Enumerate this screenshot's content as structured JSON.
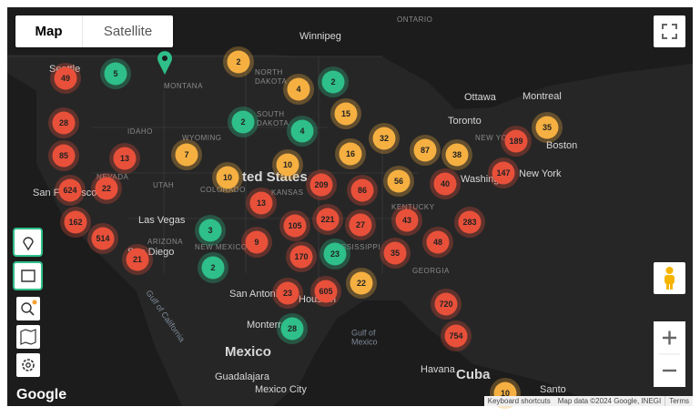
{
  "map_type_control": {
    "map": "Map",
    "satellite": "Satellite"
  },
  "places": [
    "ONTARIO",
    "Winnipeg",
    "MONTANA",
    "NORTH",
    "DAKOTA",
    "SOUTH",
    "DAKOTA",
    "WYOMING",
    "Seattle",
    "Ottawa",
    "Montreal",
    "Toronto",
    "Boston",
    "New York",
    "NEW YORK",
    "Washing",
    "ted States",
    "Las Vegas",
    "San Francisco",
    "UTAH",
    "COLORADO",
    "KANSAS",
    "NEVADA",
    "IDAHO",
    "NEW MEXICO",
    "ARIZONA",
    "San Diego",
    "San Antonio",
    "Houston",
    "Monterrey",
    "Mexico",
    "Gulf of",
    "Mexico",
    "Havana",
    "Cuba",
    "Guadalajara",
    "Mexico City",
    "Santo",
    "KENTUCKY",
    "GEORGIA",
    "MISSISSIPPI",
    "Gulf of California"
  ],
  "clusters": [
    {
      "count": 49,
      "color": "#e8503a"
    },
    {
      "count": 5,
      "color": "#2ebf8a"
    },
    {
      "count": 2,
      "color": "#f5b041"
    },
    {
      "count": 4,
      "color": "#f5b041"
    },
    {
      "count": 2,
      "color": "#2ebf8a"
    },
    {
      "count": 28,
      "color": "#e8503a"
    },
    {
      "count": 2,
      "color": "#2ebf8a"
    },
    {
      "count": 15,
      "color": "#f5b041"
    },
    {
      "count": 4,
      "color": "#2ebf8a"
    },
    {
      "count": 85,
      "color": "#e8503a"
    },
    {
      "count": 13,
      "color": "#e8503a"
    },
    {
      "count": 7,
      "color": "#f5b041"
    },
    {
      "count": 32,
      "color": "#f5b041"
    },
    {
      "count": 16,
      "color": "#f5b041"
    },
    {
      "count": 87,
      "color": "#f5b041"
    },
    {
      "count": 38,
      "color": "#f5b041"
    },
    {
      "count": 189,
      "color": "#e8503a"
    },
    {
      "count": 35,
      "color": "#f5b041"
    },
    {
      "count": 10,
      "color": "#f5b041"
    },
    {
      "count": 10,
      "color": "#f5b041"
    },
    {
      "count": 147,
      "color": "#e8503a"
    },
    {
      "count": 624,
      "color": "#e8503a"
    },
    {
      "count": 22,
      "color": "#e8503a"
    },
    {
      "count": 209,
      "color": "#e8503a"
    },
    {
      "count": 86,
      "color": "#e8503a"
    },
    {
      "count": 56,
      "color": "#f5b041"
    },
    {
      "count": 40,
      "color": "#e8503a"
    },
    {
      "count": 13,
      "color": "#e8503a"
    },
    {
      "count": 162,
      "color": "#e8503a"
    },
    {
      "count": 105,
      "color": "#e8503a"
    },
    {
      "count": 221,
      "color": "#e8503a"
    },
    {
      "count": 27,
      "color": "#e8503a"
    },
    {
      "count": 43,
      "color": "#e8503a"
    },
    {
      "count": 283,
      "color": "#e8503a"
    },
    {
      "count": 3,
      "color": "#2ebf8a"
    },
    {
      "count": 514,
      "color": "#e8503a"
    },
    {
      "count": 9,
      "color": "#e8503a"
    },
    {
      "count": 48,
      "color": "#e8503a"
    },
    {
      "count": 21,
      "color": "#e8503a"
    },
    {
      "count": 170,
      "color": "#e8503a"
    },
    {
      "count": 23,
      "color": "#2ebf8a"
    },
    {
      "count": 35,
      "color": "#e8503a"
    },
    {
      "count": 2,
      "color": "#2ebf8a"
    },
    {
      "count": 22,
      "color": "#f5b041"
    },
    {
      "count": 23,
      "color": "#e8503a"
    },
    {
      "count": 605,
      "color": "#e8503a"
    },
    {
      "count": 720,
      "color": "#e8503a"
    },
    {
      "count": 28,
      "color": "#2ebf8a"
    },
    {
      "count": 754,
      "color": "#e8503a"
    },
    {
      "count": 10,
      "color": "#f5b041"
    }
  ],
  "footer": {
    "logo": "Google",
    "shortcuts": "Keyboard shortcuts",
    "attribution": "Map data ©2024 Google, INEGI",
    "terms": "Terms"
  }
}
